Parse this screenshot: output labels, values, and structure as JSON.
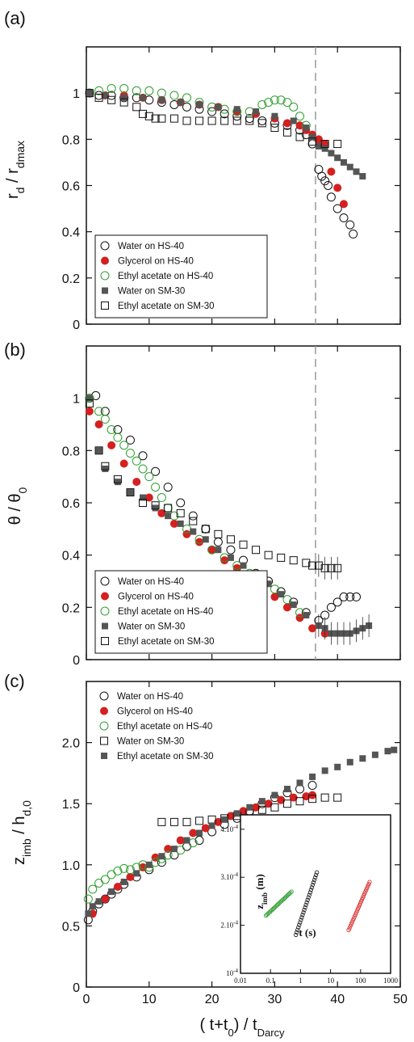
{
  "colors": {
    "water_hs40": "#111111",
    "glycerol_hs40": "#d42020",
    "ethyl_hs40": "#2e9e2e",
    "water_sm30": "#555555",
    "ethyl_sm30": "#111111",
    "dashed_line": "#999999"
  },
  "x_axis": {
    "label_main": "( t+t",
    "label_sub0": "0",
    "label_mid": ") / t",
    "label_sub1": "Darcy",
    "ticks": [
      "0",
      "10",
      "20",
      "30",
      "40",
      "50"
    ]
  },
  "chart_data": [
    {
      "panel": "(a)",
      "type": "scatter",
      "ylabel_main": "r",
      "ylabel_sub": "d",
      "ylabel_div": " / r",
      "ylabel_sub2": "dmax",
      "xlim": [
        0,
        50
      ],
      "ylim": [
        0,
        1.2
      ],
      "yticks": [
        "0",
        "0.2",
        "0.4",
        "0.6",
        "0.8",
        "1"
      ],
      "vline_x": 36.5,
      "legend": [
        "Water on HS-40",
        "Glycerol on HS-40",
        "Ethyl acetate on HS-40",
        "Water on SM-30",
        "Ethyl acetate on SM-30"
      ],
      "series": [
        {
          "name": "Water on HS-40",
          "marker": "open-circle",
          "color": "#111111",
          "x": [
            0.5,
            2,
            4,
            6,
            8,
            10,
            12,
            14,
            16,
            18,
            20,
            22,
            24,
            26,
            28,
            30,
            32,
            34,
            35,
            36,
            37,
            37.5,
            38,
            38.5,
            39,
            40,
            41,
            42,
            42.5
          ],
          "y": [
            1.0,
            0.99,
            0.99,
            0.98,
            0.98,
            0.97,
            0.96,
            0.95,
            0.94,
            0.93,
            0.92,
            0.91,
            0.9,
            0.89,
            0.88,
            0.87,
            0.86,
            0.84,
            0.82,
            0.78,
            0.67,
            0.64,
            0.62,
            0.6,
            0.55,
            0.5,
            0.46,
            0.43,
            0.39
          ]
        },
        {
          "name": "Glycerol on HS-40",
          "marker": "filled-circle",
          "color": "#d42020",
          "x": [
            0.5,
            3,
            6,
            9,
            12,
            15,
            18,
            21,
            24,
            27,
            30,
            32,
            34,
            35,
            36,
            37,
            38,
            39,
            40,
            41
          ],
          "y": [
            1.0,
            0.99,
            0.99,
            0.98,
            0.97,
            0.96,
            0.95,
            0.94,
            0.92,
            0.91,
            0.89,
            0.87,
            0.86,
            0.84,
            0.82,
            0.8,
            0.78,
            0.66,
            0.59,
            0.52
          ]
        },
        {
          "name": "Ethyl acetate on HS-40",
          "marker": "open-circle",
          "color": "#2e9e2e",
          "x": [
            0.5,
            2,
            4,
            6,
            8,
            10,
            12,
            14,
            16,
            18,
            20,
            22,
            24,
            26,
            28,
            29,
            30,
            31,
            32,
            33,
            34,
            35
          ],
          "y": [
            1.0,
            1.01,
            1.02,
            1.02,
            1.01,
            1.01,
            1.0,
            0.99,
            0.98,
            0.96,
            0.94,
            0.93,
            0.92,
            0.92,
            0.95,
            0.96,
            0.97,
            0.97,
            0.96,
            0.94,
            0.9,
            0.86
          ]
        },
        {
          "name": "Water on SM-30",
          "marker": "filled-square",
          "color": "#555555",
          "x": [
            0.5,
            3,
            6,
            9,
            12,
            15,
            18,
            21,
            24,
            27,
            30,
            33,
            35,
            36,
            37,
            38,
            39,
            40,
            41,
            42,
            43,
            44
          ],
          "y": [
            1.0,
            0.99,
            0.98,
            0.98,
            0.97,
            0.96,
            0.95,
            0.94,
            0.93,
            0.92,
            0.9,
            0.88,
            0.85,
            0.81,
            0.77,
            0.76,
            0.74,
            0.72,
            0.7,
            0.68,
            0.66,
            0.64
          ]
        },
        {
          "name": "Ethyl acetate on SM-30",
          "marker": "open-square",
          "color": "#111111",
          "x": [
            0.5,
            2,
            4,
            6,
            8,
            9,
            10,
            11,
            12,
            14,
            16,
            18,
            20,
            22,
            24,
            26,
            28,
            30,
            32,
            34,
            36,
            38,
            40
          ],
          "y": [
            1.0,
            0.98,
            0.97,
            0.96,
            0.94,
            0.91,
            0.9,
            0.89,
            0.89,
            0.89,
            0.88,
            0.88,
            0.88,
            0.88,
            0.88,
            0.88,
            0.87,
            0.85,
            0.83,
            0.81,
            0.79,
            0.78,
            0.78
          ]
        }
      ]
    },
    {
      "panel": "(b)",
      "type": "scatter",
      "ylabel_main": "θ / θ",
      "ylabel_sub": "0",
      "xlim": [
        0,
        50
      ],
      "ylim": [
        0,
        1.2
      ],
      "yticks": [
        "0",
        "0.2",
        "0.4",
        "0.6",
        "0.8",
        "1"
      ],
      "vline_x": 36.5,
      "legend": [
        "Water on HS-40",
        "Glycerol on HS-40",
        "Ethyl acetate on HS-40",
        "Water on SM-30",
        "Ethyl acetate on SM-30"
      ],
      "series": [
        {
          "name": "Water on HS-40",
          "marker": "open-circle",
          "color": "#111111",
          "x": [
            0.5,
            1.5,
            3,
            5,
            7,
            9,
            11,
            13,
            15,
            17,
            19,
            21,
            23,
            25,
            27,
            29,
            31,
            33,
            35,
            37,
            38,
            39,
            40,
            41,
            42,
            43
          ],
          "y": [
            1.0,
            1.01,
            0.95,
            0.88,
            0.84,
            0.78,
            0.72,
            0.66,
            0.6,
            0.55,
            0.5,
            0.45,
            0.42,
            0.38,
            0.33,
            0.3,
            0.26,
            0.22,
            0.18,
            0.15,
            0.17,
            0.2,
            0.22,
            0.24,
            0.24,
            0.24
          ]
        },
        {
          "name": "Glycerol on HS-40",
          "marker": "filled-circle",
          "color": "#d42020",
          "x": [
            0.5,
            2,
            4,
            6,
            8,
            10,
            12,
            14,
            16,
            18,
            20,
            22,
            24,
            26,
            28,
            30,
            32,
            34,
            36,
            38
          ],
          "y": [
            0.95,
            0.9,
            0.82,
            0.75,
            0.68,
            0.62,
            0.56,
            0.52,
            0.48,
            0.45,
            0.42,
            0.38,
            0.35,
            0.32,
            0.28,
            0.24,
            0.2,
            0.16,
            0.12,
            0.1
          ]
        },
        {
          "name": "Ethyl acetate on HS-40",
          "marker": "open-circle",
          "color": "#2e9e2e",
          "x": [
            0.5,
            2,
            3,
            4,
            5,
            6,
            7,
            8,
            9,
            10,
            11,
            12,
            13,
            14,
            16,
            18,
            20,
            22,
            24,
            26,
            28,
            30,
            32,
            34
          ],
          "y": [
            1.0,
            0.95,
            0.92,
            0.88,
            0.85,
            0.82,
            0.79,
            0.76,
            0.73,
            0.7,
            0.66,
            0.62,
            0.58,
            0.55,
            0.5,
            0.46,
            0.42,
            0.39,
            0.36,
            0.33,
            0.3,
            0.27,
            0.23,
            0.18
          ]
        },
        {
          "name": "Water on SM-30",
          "marker": "filled-square",
          "color": "#555555",
          "x": [
            0.5,
            2,
            3,
            5,
            7,
            9,
            11,
            13,
            15,
            17,
            19,
            21,
            23,
            25,
            27,
            29,
            31,
            33,
            35,
            37,
            38,
            39,
            40,
            41,
            42,
            43,
            44,
            45
          ],
          "y": [
            1.0,
            0.8,
            0.73,
            0.68,
            0.64,
            0.62,
            0.58,
            0.55,
            0.52,
            0.49,
            0.46,
            0.42,
            0.39,
            0.36,
            0.33,
            0.29,
            0.25,
            0.21,
            0.17,
            0.13,
            0.12,
            0.1,
            0.1,
            0.1,
            0.1,
            0.11,
            0.12,
            0.13
          ]
        },
        {
          "name": "Ethyl acetate on SM-30",
          "marker": "open-square",
          "color": "#111111",
          "x": [
            0.5,
            2,
            3,
            5,
            7,
            9,
            11,
            13,
            15,
            17,
            19,
            21,
            23,
            25,
            27,
            29,
            31,
            33,
            35,
            36,
            37,
            38,
            39,
            40
          ],
          "y": [
            0.98,
            0.8,
            0.74,
            0.69,
            0.64,
            0.6,
            0.59,
            0.58,
            0.56,
            0.53,
            0.5,
            0.48,
            0.46,
            0.44,
            0.42,
            0.4,
            0.39,
            0.38,
            0.37,
            0.36,
            0.36,
            0.35,
            0.35,
            0.35
          ]
        }
      ]
    },
    {
      "panel": "(c)",
      "type": "scatter",
      "ylabel_main": "z",
      "ylabel_sub": "imb",
      "ylabel_div": " / h",
      "ylabel_sub2": "d,0",
      "xlim": [
        0,
        50
      ],
      "ylim": [
        0,
        2.5
      ],
      "yticks": [
        "0",
        "0.5",
        "1.0",
        "1.5",
        "2.0"
      ],
      "legend": [
        "Water on HS-40",
        "Glycerol on HS-40",
        "Ethyl acetate on HS-40",
        "Water on SM-30",
        "Ethyl acetate on SM-30"
      ],
      "series": [
        {
          "name": "Water on HS-40",
          "marker": "open-circle",
          "color": "#111111",
          "x": [
            0.3,
            1,
            2,
            3,
            4,
            5,
            6,
            8,
            10,
            12,
            14,
            16,
            18,
            20,
            22,
            24,
            26,
            28,
            30,
            32,
            34,
            36
          ],
          "y": [
            0.55,
            0.62,
            0.68,
            0.72,
            0.76,
            0.8,
            0.84,
            0.9,
            0.96,
            1.02,
            1.08,
            1.15,
            1.2,
            1.27,
            1.33,
            1.38,
            1.44,
            1.5,
            1.55,
            1.59,
            1.62,
            1.65
          ]
        },
        {
          "name": "Glycerol on HS-40",
          "marker": "filled-circle",
          "color": "#d42020",
          "x": [
            1,
            3,
            5,
            7,
            9,
            11,
            13,
            15,
            17,
            19,
            21,
            23,
            25,
            27,
            29,
            31,
            33,
            35,
            36
          ],
          "y": [
            0.6,
            0.72,
            0.82,
            0.9,
            0.98,
            1.06,
            1.13,
            1.2,
            1.26,
            1.3,
            1.35,
            1.4,
            1.44,
            1.47,
            1.5,
            1.53,
            1.55,
            1.56,
            1.57
          ]
        },
        {
          "name": "Ethyl acetate on HS-40",
          "marker": "open-circle",
          "color": "#2e9e2e",
          "x": [
            0.3,
            1,
            2,
            3,
            4,
            5,
            6,
            7,
            8,
            9,
            10,
            11,
            12,
            13,
            15,
            17
          ],
          "y": [
            0.72,
            0.8,
            0.85,
            0.88,
            0.92,
            0.95,
            0.97,
            0.96,
            0.98,
            1.0,
            0.98,
            1.02,
            1.05,
            1.08,
            1.12,
            1.18
          ]
        },
        {
          "name": "Water on SM-30",
          "marker": "open-square",
          "color": "#111111",
          "x": [
            12,
            14,
            16,
            18,
            20,
            22,
            24,
            26,
            28,
            30,
            32,
            34,
            36,
            38,
            40
          ],
          "y": [
            1.35,
            1.35,
            1.35,
            1.36,
            1.37,
            1.38,
            1.4,
            1.42,
            1.45,
            1.47,
            1.5,
            1.52,
            1.54,
            1.55,
            1.55
          ]
        },
        {
          "name": "Ethyl acetate on SM-30",
          "marker": "filled-square",
          "color": "#555555",
          "x": [
            0.3,
            1,
            2,
            4,
            6,
            8,
            10,
            12,
            14,
            16,
            18,
            20,
            22,
            24,
            26,
            28,
            30,
            32,
            34,
            36,
            38,
            40,
            42,
            44,
            46,
            48,
            49
          ],
          "y": [
            0.6,
            0.66,
            0.7,
            0.78,
            0.86,
            0.93,
            1.0,
            1.07,
            1.13,
            1.2,
            1.26,
            1.32,
            1.37,
            1.42,
            1.47,
            1.52,
            1.57,
            1.62,
            1.67,
            1.72,
            1.77,
            1.8,
            1.84,
            1.87,
            1.9,
            1.93,
            1.94
          ]
        }
      ],
      "inset": {
        "xlabel": "t (s)",
        "ylabel_main": "z",
        "ylabel_sub": "imb",
        "ylabel_unit": " (m)",
        "xticks": [
          "0.01",
          "0.1",
          "1",
          "10",
          "100",
          "1000"
        ],
        "yticks": [
          "10",
          "2.10",
          "3.10",
          "4.10"
        ],
        "ytick_exp": "-4",
        "log_x": true,
        "clusters": [
          {
            "color": "#2e9e2e",
            "t_range": [
              0.07,
              0.5
            ],
            "z_range": [
              2.2,
              2.7
            ]
          },
          {
            "color": "#111111",
            "t_range": [
              0.7,
              3.5
            ],
            "z_range": [
              1.8,
              3.1
            ]
          },
          {
            "color": "#d42020",
            "t_range": [
              40,
              200
            ],
            "z_range": [
              1.9,
              2.9
            ]
          }
        ]
      }
    }
  ]
}
